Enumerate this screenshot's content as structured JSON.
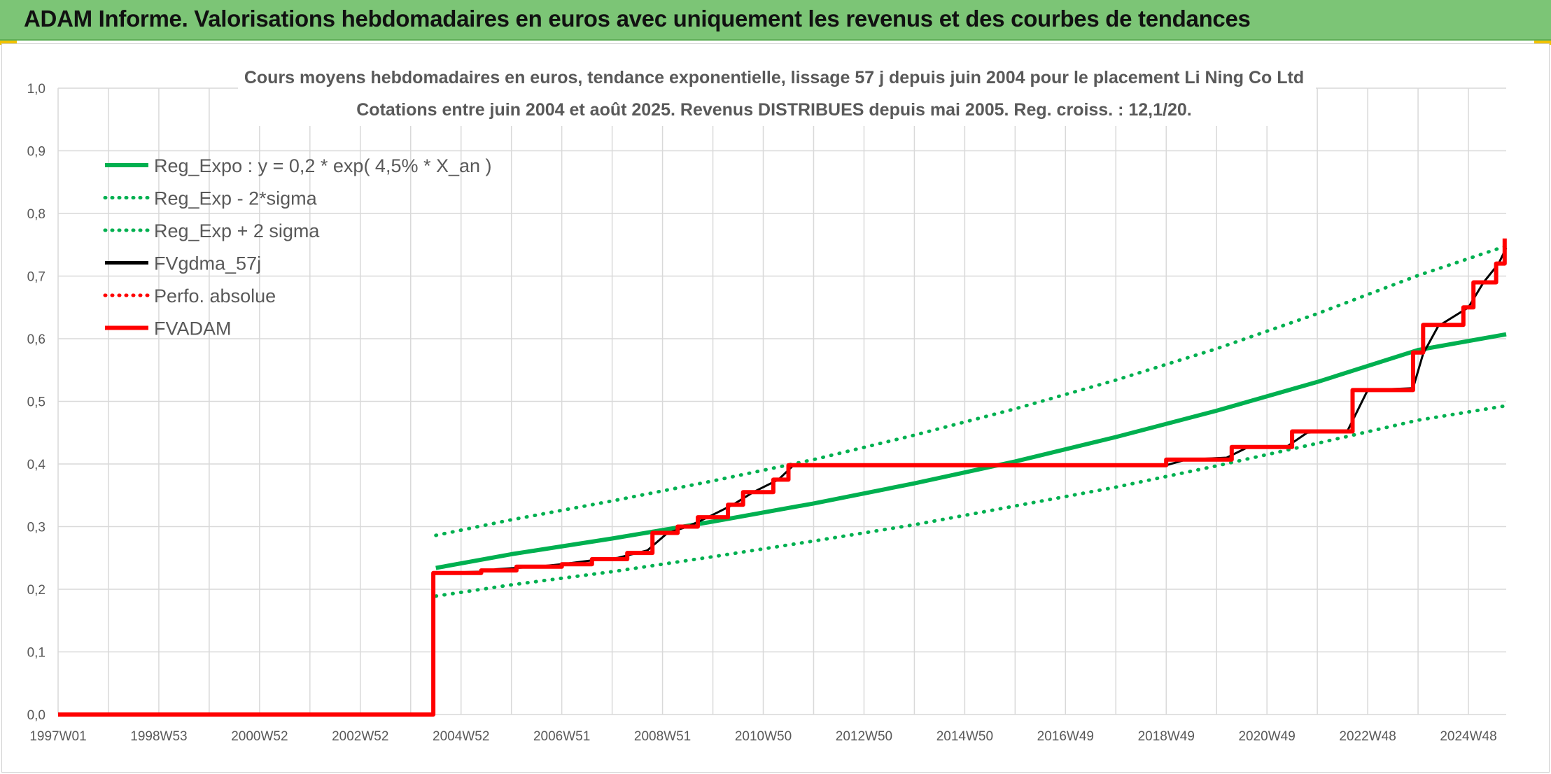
{
  "banner": {
    "title": "ADAM Informe. Valorisations hebdomadaires en euros avec uniquement les revenus et des courbes de tendances"
  },
  "colors": {
    "banner_bg": "#7cc576",
    "trend_green": "#00b050",
    "price_black": "#000000",
    "adam_red": "#ff0000",
    "grid": "#d9d9d9",
    "text": "#595959"
  },
  "chart_data": {
    "type": "line",
    "title_lines": [
      "Cours moyens hebdomadaires en euros, tendance exponentielle, lissage 57 j depuis juin 2004 pour le placement Li Ning Co Ltd",
      "Cotations entre juin 2004 et août 2025. Revenus DISTRIBUES depuis mai 2005. Reg. croiss. : 12,1/20."
    ],
    "xlabel": "",
    "ylabel": "",
    "x_ticks": [
      "1997W01",
      "1998W53",
      "2000W52",
      "2002W52",
      "2004W52",
      "2006W51",
      "2008W51",
      "2010W50",
      "2012W50",
      "2014W50",
      "2016W49",
      "2018W49",
      "2020W49",
      "2022W48",
      "2024W48"
    ],
    "x_range": [
      1997.0,
      2025.75
    ],
    "y_ticks": [
      "0,0",
      "0,1",
      "0,2",
      "0,3",
      "0,4",
      "0,5",
      "0,6",
      "0,7",
      "0,8",
      "0,9",
      "1,0"
    ],
    "ylim": [
      0,
      1.0
    ],
    "grid": true,
    "legend_position": "top-left",
    "series": [
      {
        "name": "Reg_Expo : y = 0,2 * exp( 4,5% *  X_an )",
        "style": "solid",
        "color": "#00b050",
        "points": [
          [
            2004.5,
            0.234
          ],
          [
            2006,
            0.256
          ],
          [
            2008,
            0.281
          ],
          [
            2010,
            0.308
          ],
          [
            2012,
            0.337
          ],
          [
            2014,
            0.369
          ],
          [
            2016,
            0.404
          ],
          [
            2018,
            0.443
          ],
          [
            2020,
            0.485
          ],
          [
            2022,
            0.531
          ],
          [
            2024,
            0.582
          ],
          [
            2025.75,
            0.607
          ]
        ]
      },
      {
        "name": "Reg_Exp - 2*sigma",
        "style": "dotted",
        "color": "#00b050",
        "points": [
          [
            2004.5,
            0.189
          ],
          [
            2006,
            0.207
          ],
          [
            2008,
            0.228
          ],
          [
            2010,
            0.252
          ],
          [
            2012,
            0.277
          ],
          [
            2014,
            0.303
          ],
          [
            2016,
            0.333
          ],
          [
            2018,
            0.363
          ],
          [
            2020,
            0.397
          ],
          [
            2022,
            0.433
          ],
          [
            2024,
            0.47
          ],
          [
            2025.75,
            0.493
          ]
        ]
      },
      {
        "name": "Reg_Exp + 2 sigma",
        "style": "dotted",
        "color": "#00b050",
        "points": [
          [
            2004.5,
            0.286
          ],
          [
            2006,
            0.311
          ],
          [
            2008,
            0.341
          ],
          [
            2010,
            0.373
          ],
          [
            2012,
            0.407
          ],
          [
            2014,
            0.446
          ],
          [
            2016,
            0.488
          ],
          [
            2018,
            0.534
          ],
          [
            2020,
            0.584
          ],
          [
            2022,
            0.64
          ],
          [
            2024,
            0.701
          ],
          [
            2025.75,
            0.748
          ]
        ]
      },
      {
        "name": "FVgdma_57j",
        "style": "solid",
        "color": "#000000",
        "points": [
          [
            1997.0,
            0.0
          ],
          [
            2004.45,
            0.0
          ],
          [
            2004.45,
            0.226
          ],
          [
            2005.4,
            0.228
          ],
          [
            2005.7,
            0.232
          ],
          [
            2006.5,
            0.236
          ],
          [
            2007.0,
            0.24
          ],
          [
            2007.6,
            0.246
          ],
          [
            2008.1,
            0.25
          ],
          [
            2008.7,
            0.262
          ],
          [
            2009.1,
            0.29
          ],
          [
            2009.5,
            0.3
          ],
          [
            2009.9,
            0.315
          ],
          [
            2010.4,
            0.335
          ],
          [
            2010.8,
            0.355
          ],
          [
            2011.3,
            0.375
          ],
          [
            2011.6,
            0.398
          ],
          [
            2019.0,
            0.398
          ],
          [
            2019.4,
            0.407
          ],
          [
            2020.2,
            0.41
          ],
          [
            2020.6,
            0.426
          ],
          [
            2021.4,
            0.428
          ],
          [
            2021.8,
            0.45
          ],
          [
            2022.6,
            0.453
          ],
          [
            2023.0,
            0.518
          ],
          [
            2023.9,
            0.521
          ],
          [
            2024.1,
            0.576
          ],
          [
            2024.4,
            0.62
          ],
          [
            2025.0,
            0.65
          ],
          [
            2025.3,
            0.69
          ],
          [
            2025.6,
            0.72
          ],
          [
            2025.75,
            0.745
          ]
        ]
      },
      {
        "name": "Perfo. absolue",
        "style": "dotted",
        "color": "#ff0000",
        "points": []
      },
      {
        "name": "FVADAM",
        "style": "solid",
        "color": "#ff0000",
        "points": [
          [
            1997.0,
            0.0
          ],
          [
            2004.45,
            0.0
          ],
          [
            2004.45,
            0.226
          ],
          [
            2005.4,
            0.226
          ],
          [
            2005.4,
            0.23
          ],
          [
            2006.1,
            0.23
          ],
          [
            2006.1,
            0.236
          ],
          [
            2007.0,
            0.236
          ],
          [
            2007.0,
            0.24
          ],
          [
            2007.6,
            0.24
          ],
          [
            2007.6,
            0.248
          ],
          [
            2008.3,
            0.248
          ],
          [
            2008.3,
            0.258
          ],
          [
            2008.8,
            0.258
          ],
          [
            2008.8,
            0.29
          ],
          [
            2009.3,
            0.29
          ],
          [
            2009.3,
            0.3
          ],
          [
            2009.7,
            0.3
          ],
          [
            2009.7,
            0.315
          ],
          [
            2010.3,
            0.315
          ],
          [
            2010.3,
            0.335
          ],
          [
            2010.6,
            0.335
          ],
          [
            2010.6,
            0.355
          ],
          [
            2011.2,
            0.355
          ],
          [
            2011.2,
            0.375
          ],
          [
            2011.5,
            0.375
          ],
          [
            2011.5,
            0.398
          ],
          [
            2019.0,
            0.398
          ],
          [
            2019.0,
            0.407
          ],
          [
            2020.3,
            0.407
          ],
          [
            2020.3,
            0.427
          ],
          [
            2021.5,
            0.427
          ],
          [
            2021.5,
            0.452
          ],
          [
            2022.7,
            0.452
          ],
          [
            2022.7,
            0.518
          ],
          [
            2023.9,
            0.518
          ],
          [
            2023.9,
            0.578
          ],
          [
            2024.1,
            0.578
          ],
          [
            2024.1,
            0.622
          ],
          [
            2024.9,
            0.622
          ],
          [
            2024.9,
            0.65
          ],
          [
            2025.1,
            0.65
          ],
          [
            2025.1,
            0.69
          ],
          [
            2025.55,
            0.69
          ],
          [
            2025.55,
            0.72
          ],
          [
            2025.72,
            0.72
          ],
          [
            2025.72,
            0.76
          ]
        ]
      }
    ]
  }
}
